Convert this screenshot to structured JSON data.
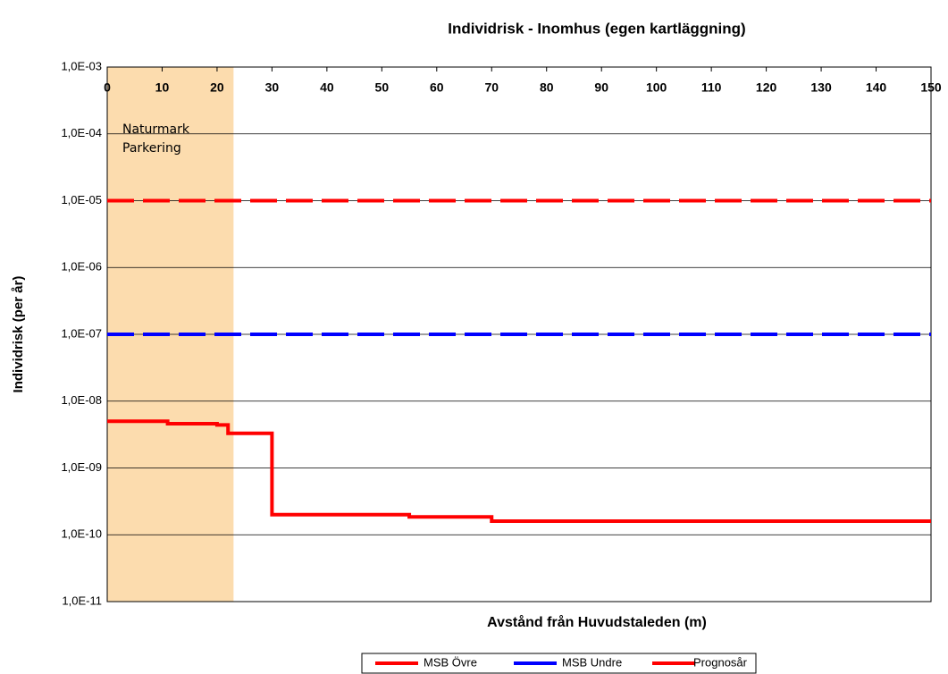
{
  "chart_data": {
    "type": "line",
    "title": "Individrisk - Inomhus (egen kartläggning)",
    "xlabel": "Avstånd från Huvudstaleden (m)",
    "ylabel": "Individrisk (per år)",
    "log_y": true,
    "grid": true,
    "legend": "bottom",
    "xlim": [
      0,
      150
    ],
    "xticks": [
      0,
      10,
      20,
      30,
      40,
      50,
      60,
      70,
      80,
      90,
      100,
      110,
      120,
      130,
      140,
      150
    ],
    "ylim": [
      1e-11,
      0.001
    ],
    "yticks": [
      {
        "value": 1e-11,
        "label": "1,0E-11"
      },
      {
        "value": 1e-10,
        "label": "1,0E-10"
      },
      {
        "value": 1e-09,
        "label": "1,0E-09"
      },
      {
        "value": 1e-08,
        "label": "1,0E-08"
      },
      {
        "value": 1e-07,
        "label": "1,0E-07"
      },
      {
        "value": 1e-06,
        "label": "1,0E-06"
      },
      {
        "value": 1e-05,
        "label": "1,0E-05"
      },
      {
        "value": 0.0001,
        "label": "1,0E-04"
      },
      {
        "value": 0.001,
        "label": "1,0E-03"
      }
    ],
    "region": {
      "xrange": [
        0,
        23
      ],
      "color": "#fcdcae",
      "labels": [
        "Naturmark",
        "Parkering"
      ]
    },
    "series": [
      {
        "name": "MSB Övre",
        "color": "#ff0000",
        "dashed": true,
        "x": [
          0,
          150
        ],
        "values": [
          1e-05,
          1e-05
        ]
      },
      {
        "name": "MSB Undre",
        "color": "#0000ff",
        "dashed": true,
        "x": [
          0,
          150
        ],
        "values": [
          1e-07,
          1e-07
        ]
      },
      {
        "name": "Prognosår",
        "color": "#ff0000",
        "dashed": false,
        "step": true,
        "x": [
          0,
          11,
          20,
          22,
          30,
          55,
          70,
          150
        ],
        "values": [
          5e-09,
          4.6e-09,
          4.4e-09,
          3.3e-09,
          2e-10,
          1.85e-10,
          1.6e-10,
          1.6e-10
        ]
      }
    ]
  }
}
